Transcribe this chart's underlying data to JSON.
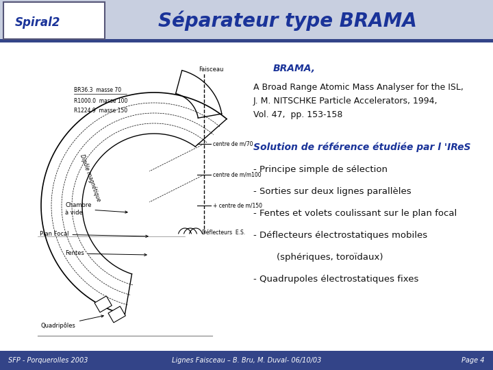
{
  "title": "Séparateur type BRAMA",
  "title_color": "#1a3399",
  "title_fontsize": 20,
  "bg_color": "#ffffff",
  "header_bg": "#c8cfe0",
  "header_line_color": "#334488",
  "brama_italic": "BRAMA,",
  "brama_color": "#1a3399",
  "ref_line1": "A Broad Range Atomic Mass Analyser for the ISL,",
  "ref_line2": "J. M. NITSCHKE Particle Accelerators, 1994,",
  "ref_line3": "Vol. 47,  pp. 153-158",
  "solution_header": "Solution de référence étudiée par l 'IReS",
  "solution_color": "#1a3399",
  "bullets": [
    "- Principe simple de sélection",
    "- Sorties sur deux lignes parallèles",
    "- Fentes et volets coulissant sur le plan focal",
    "- Déflecteurs électrostatiques mobiles",
    "        (sphériques, toroïdaux)",
    "- Quadrupoles électrostatiques fixes"
  ],
  "bullet_color": "#111111",
  "footer_left": "SFP - Porquerolles 2003",
  "footer_center": "Lignes Faisceau – B. Bru, M. Duval- 06/10/03",
  "footer_right": "Page 4",
  "footer_text_color": "#ffffff",
  "footer_bg": "#334488"
}
